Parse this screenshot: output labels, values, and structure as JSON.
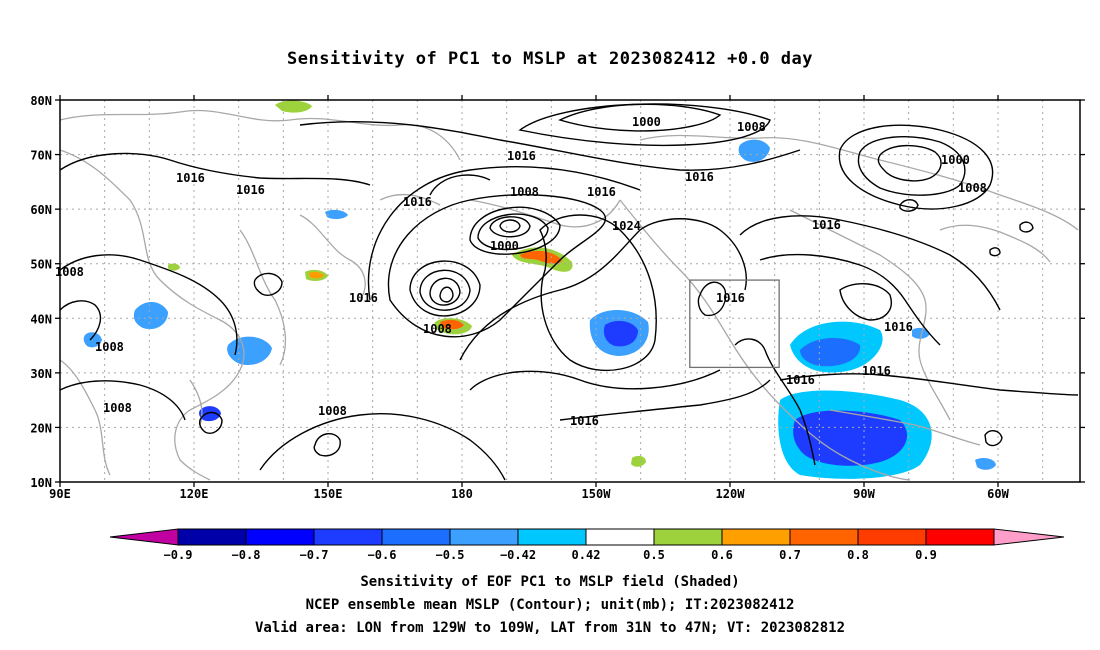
{
  "title": "Sensitivity of PC1 to MSLP at 2023082412 +0.0 day",
  "lat_labels": [
    "80N",
    "70N",
    "60N",
    "50N",
    "40N",
    "30N",
    "20N",
    "10N"
  ],
  "lon_labels": [
    "90E",
    "120E",
    "150E",
    "180",
    "150W",
    "120W",
    "90W",
    "60W"
  ],
  "contour_labels": [
    "1000",
    "1008",
    "1016",
    "1016",
    "1016",
    "1016",
    "1008",
    "1000",
    "1016",
    "1024",
    "1016",
    "1000",
    "1008",
    "1016",
    "1016",
    "1008",
    "1008",
    "1008",
    "1016",
    "1008",
    "1016",
    "1016",
    "1016",
    "1016"
  ],
  "colorbar": {
    "labels": [
      "-0.9",
      "-0.8",
      "-0.7",
      "-0.6",
      "-0.5",
      "-0.42",
      "0.42",
      "0.5",
      "0.6",
      "0.7",
      "0.8",
      "0.9"
    ],
    "colors": [
      "#c000a0",
      "#0000a8",
      "#0000ff",
      "#1e3cff",
      "#1c6eff",
      "#3ca0ff",
      "#00c8ff",
      "#ffffff",
      "#9ed23c",
      "#ffa000",
      "#ff6400",
      "#ff3c00",
      "#ff0000",
      "#ff9ec8"
    ]
  },
  "captions": [
    "Sensitivity of EOF PC1 to MSLP field (Shaded)",
    "NCEP ensemble mean MSLP (Contour); unit(mb); IT:2023082412",
    "Valid area: LON from 129W to 109W, LAT from 31N to 47N; VT: 2023082812"
  ],
  "valid_area": {
    "lon": [
      -129,
      -109
    ],
    "lat": [
      31,
      47
    ]
  }
}
